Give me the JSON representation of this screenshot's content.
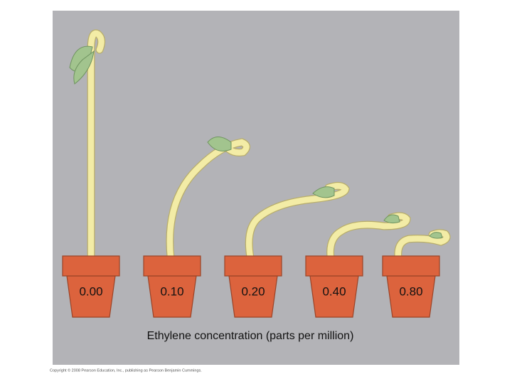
{
  "pots": [
    {
      "label": "0.00"
    },
    {
      "label": "0.10"
    },
    {
      "label": "0.20"
    },
    {
      "label": "0.40"
    },
    {
      "label": "0.80"
    }
  ],
  "caption": "Ethylene concentration (parts per million)",
  "copyright": "Copyright © 2008 Pearson Education, Inc., publishing as Pearson Benjamin Cummings."
}
